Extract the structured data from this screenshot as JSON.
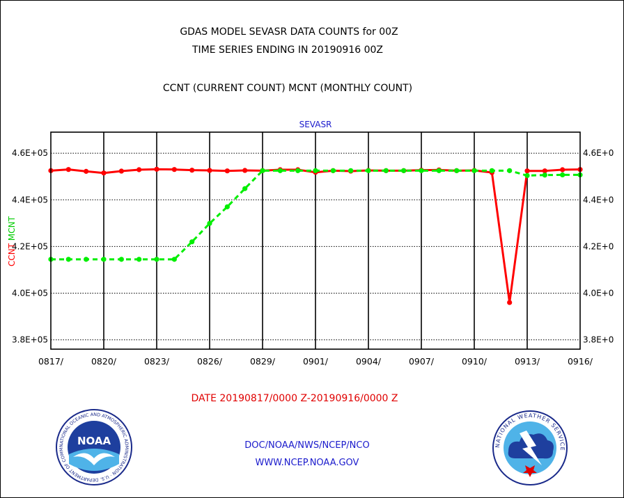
{
  "header": {
    "title_line1": "GDAS MODEL SEVASR DATA COUNTS for 00Z",
    "title_line2": "TIME SERIES ENDING IN 20190916 00Z",
    "subtitle": "CCNT (CURRENT COUNT) MCNT (MONTHLY COUNT)"
  },
  "chart_data": {
    "type": "line",
    "title": "SEVASR",
    "categories": [
      "0817",
      "0818",
      "0819",
      "0820",
      "0821",
      "0822",
      "0823",
      "0824",
      "0825",
      "0826",
      "0827",
      "0828",
      "0829",
      "0830",
      "0831",
      "0901",
      "0902",
      "0903",
      "0904",
      "0905",
      "0906",
      "0907",
      "0908",
      "0909",
      "0910",
      "0911",
      "0912",
      "0913",
      "0914",
      "0915",
      "0916"
    ],
    "x_tick_labels": [
      "0817/",
      "0820/",
      "0823/",
      "0826/",
      "0829/",
      "0901/",
      "0904/",
      "0907/",
      "0910/",
      "0913/",
      "0916/"
    ],
    "y_tick_labels_left": [
      "3.8E+05",
      "4.0E+05",
      "4.2E+05",
      "4.4E+05",
      "4.6E+05"
    ],
    "y_tick_labels_right": [
      "3.8E+0",
      "4.0E+0",
      "4.2E+0",
      "4.4E+0",
      "4.6E+0"
    ],
    "y_tick_values": [
      380000,
      400000,
      420000,
      440000,
      460000
    ],
    "ylim": [
      376000,
      469000
    ],
    "ylabel_left_parts": [
      "CCNT",
      "MCNT"
    ],
    "ylabel_left_colors": [
      "#ff0000",
      "#00cc00"
    ],
    "grid": true,
    "series": [
      {
        "name": "CCNT",
        "color": "#ff0000",
        "values": [
          452500,
          453000,
          452200,
          451500,
          452300,
          452900,
          453100,
          453000,
          452700,
          452600,
          452400,
          452600,
          452500,
          452900,
          452900,
          451800,
          452500,
          452300,
          452600,
          452500,
          452500,
          452700,
          452800,
          452500,
          452600,
          451700,
          396000,
          452400,
          452400,
          452900,
          453000
        ]
      },
      {
        "name": "MCNT",
        "color": "#00ee00",
        "values": [
          414500,
          414500,
          414500,
          414500,
          414500,
          414500,
          414500,
          414500,
          422000,
          429900,
          437000,
          444800,
          452500,
          452500,
          452500,
          452500,
          452500,
          452500,
          452500,
          452500,
          452500,
          452500,
          452500,
          452500,
          452500,
          452500,
          452500,
          450400,
          450600,
          450700,
          450700
        ]
      }
    ]
  },
  "footer": {
    "date_range": "DATE 20190817/0000 Z-20190916/0000 Z",
    "org_line": "DOC/NOAA/NWS/NCEP/NCO",
    "url_line": "WWW.NCEP.NOAA.GOV"
  },
  "logos": {
    "noaa_text": "NOAA",
    "noaa_ring_text": "NATIONAL OCEANIC AND ATMOSPHERIC ADMINISTRATION · U.S. DEPARTMENT OF COMMERCE ·",
    "nws_ring_text": "NATIONAL WEATHER SERVICE"
  },
  "colors": {
    "title_text": "#000000",
    "blue_text": "#1a1acc",
    "red_text": "#e00000",
    "ccnt_line": "#ff0000",
    "mcnt_line": "#00ee00"
  }
}
